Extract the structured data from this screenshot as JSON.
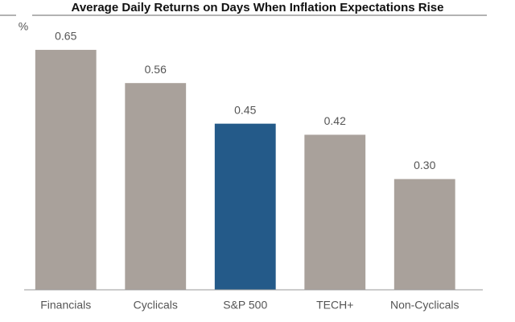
{
  "chart_data": {
    "type": "bar",
    "title": "Average Daily Returns on Days When Inflation Expectations Rise",
    "ylabel": "%",
    "categories": [
      "Financials",
      "Cyclicals",
      "S&P 500",
      "TECH+",
      "Non-Cyclicals"
    ],
    "values": [
      0.65,
      0.56,
      0.45,
      0.42,
      0.3
    ],
    "value_labels": [
      "0.65",
      "0.56",
      "0.45",
      "0.42",
      "0.30"
    ],
    "colors": [
      "#a9a19b",
      "#a9a19b",
      "#245a89",
      "#a9a19b",
      "#a9a19b"
    ],
    "ylim": [
      0,
      0.7
    ]
  }
}
